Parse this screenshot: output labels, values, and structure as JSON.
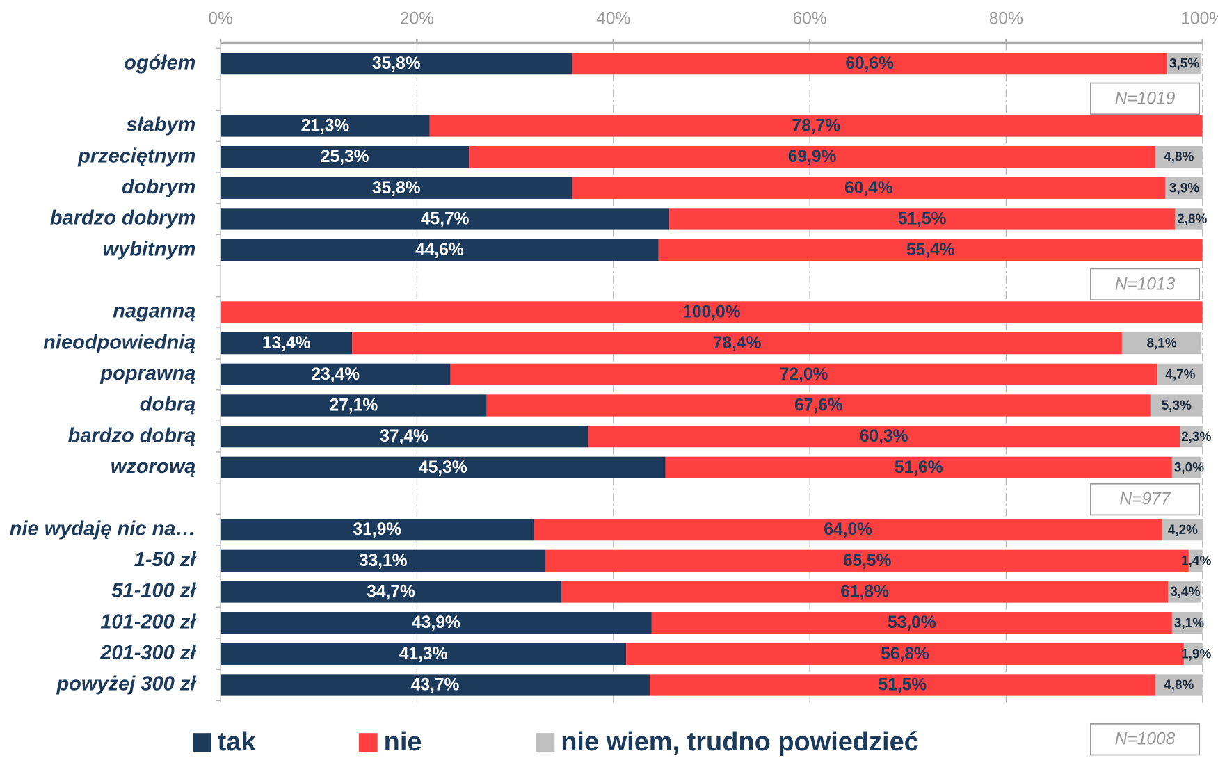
{
  "chart_data": {
    "type": "stacked_bar",
    "orientation": "horizontal",
    "categories": [
      "ogółem",
      null,
      "słabym",
      "przeciętnym",
      "dobrym",
      "bardzo dobrym",
      "wybitnym",
      null,
      "naganną",
      "nieodpowiednią",
      "poprawną",
      "dobrą",
      "bardzo dobrą",
      "wzorową",
      null,
      "nie wydaję nic na…",
      "1-50 zł",
      "51-100 zł",
      "101-200 zł",
      "201-300 zł",
      "powyżej 300 zł"
    ],
    "series": [
      {
        "name": "tak",
        "color": "#1b3a5c",
        "values": [
          35.8,
          null,
          21.3,
          25.3,
          35.8,
          45.7,
          44.6,
          null,
          null,
          13.4,
          23.4,
          27.1,
          37.4,
          45.3,
          null,
          31.9,
          33.1,
          34.7,
          43.9,
          41.3,
          43.7
        ],
        "value_labels": [
          "35,8%",
          null,
          "21,3%",
          "25,3%",
          "35,8%",
          "45,7%",
          "44,6%",
          null,
          null,
          "13,4%",
          "23,4%",
          "27,1%",
          "37,4%",
          "45,3%",
          null,
          "31,9%",
          "33,1%",
          "34,7%",
          "43,9%",
          "41,3%",
          "43,7%"
        ]
      },
      {
        "name": "nie",
        "color": "#ff4040",
        "values": [
          60.6,
          null,
          78.7,
          69.9,
          60.4,
          51.5,
          55.4,
          null,
          100.0,
          78.4,
          72.0,
          67.6,
          60.3,
          51.6,
          null,
          64.0,
          65.5,
          61.8,
          53.0,
          56.8,
          51.5
        ],
        "value_labels": [
          "60,6%",
          null,
          "78,7%",
          "69,9%",
          "60,4%",
          "51,5%",
          "55,4%",
          null,
          "100,0%",
          "78,4%",
          "72,0%",
          "67,6%",
          "60,3%",
          "51,6%",
          null,
          "64,0%",
          "65,5%",
          "61,8%",
          "53,0%",
          "56,8%",
          "51,5%"
        ]
      },
      {
        "name": "nie wiem, trudno powiedzieć",
        "color": "#c0c0c0",
        "values": [
          3.5,
          null,
          null,
          4.8,
          3.9,
          2.8,
          null,
          null,
          null,
          8.1,
          4.7,
          5.3,
          2.3,
          3.0,
          null,
          4.2,
          1.4,
          3.4,
          3.1,
          1.9,
          4.8
        ],
        "value_labels": [
          "3,5%",
          null,
          null,
          "4,8%",
          "3,9%",
          "2,8%",
          null,
          null,
          null,
          "8,1%",
          "4,7%",
          "5,3%",
          "2,3%",
          "3,0%",
          null,
          "4,2%",
          "1,4%",
          "3,4%",
          "3,1%",
          "1,9%",
          "4,8%"
        ]
      }
    ],
    "xlim": [
      0,
      100
    ],
    "xticks": [
      {
        "value": 0,
        "label": "0%"
      },
      {
        "value": 20,
        "label": "20%"
      },
      {
        "value": 40,
        "label": "40%"
      },
      {
        "value": 60,
        "label": "60%"
      },
      {
        "value": 80,
        "label": "80%"
      },
      {
        "value": 100,
        "label": "100%"
      }
    ],
    "grid": true,
    "legend": "bottom",
    "annotations": [
      "N=1019",
      "N=1013",
      "N=977",
      "N=1008"
    ]
  }
}
